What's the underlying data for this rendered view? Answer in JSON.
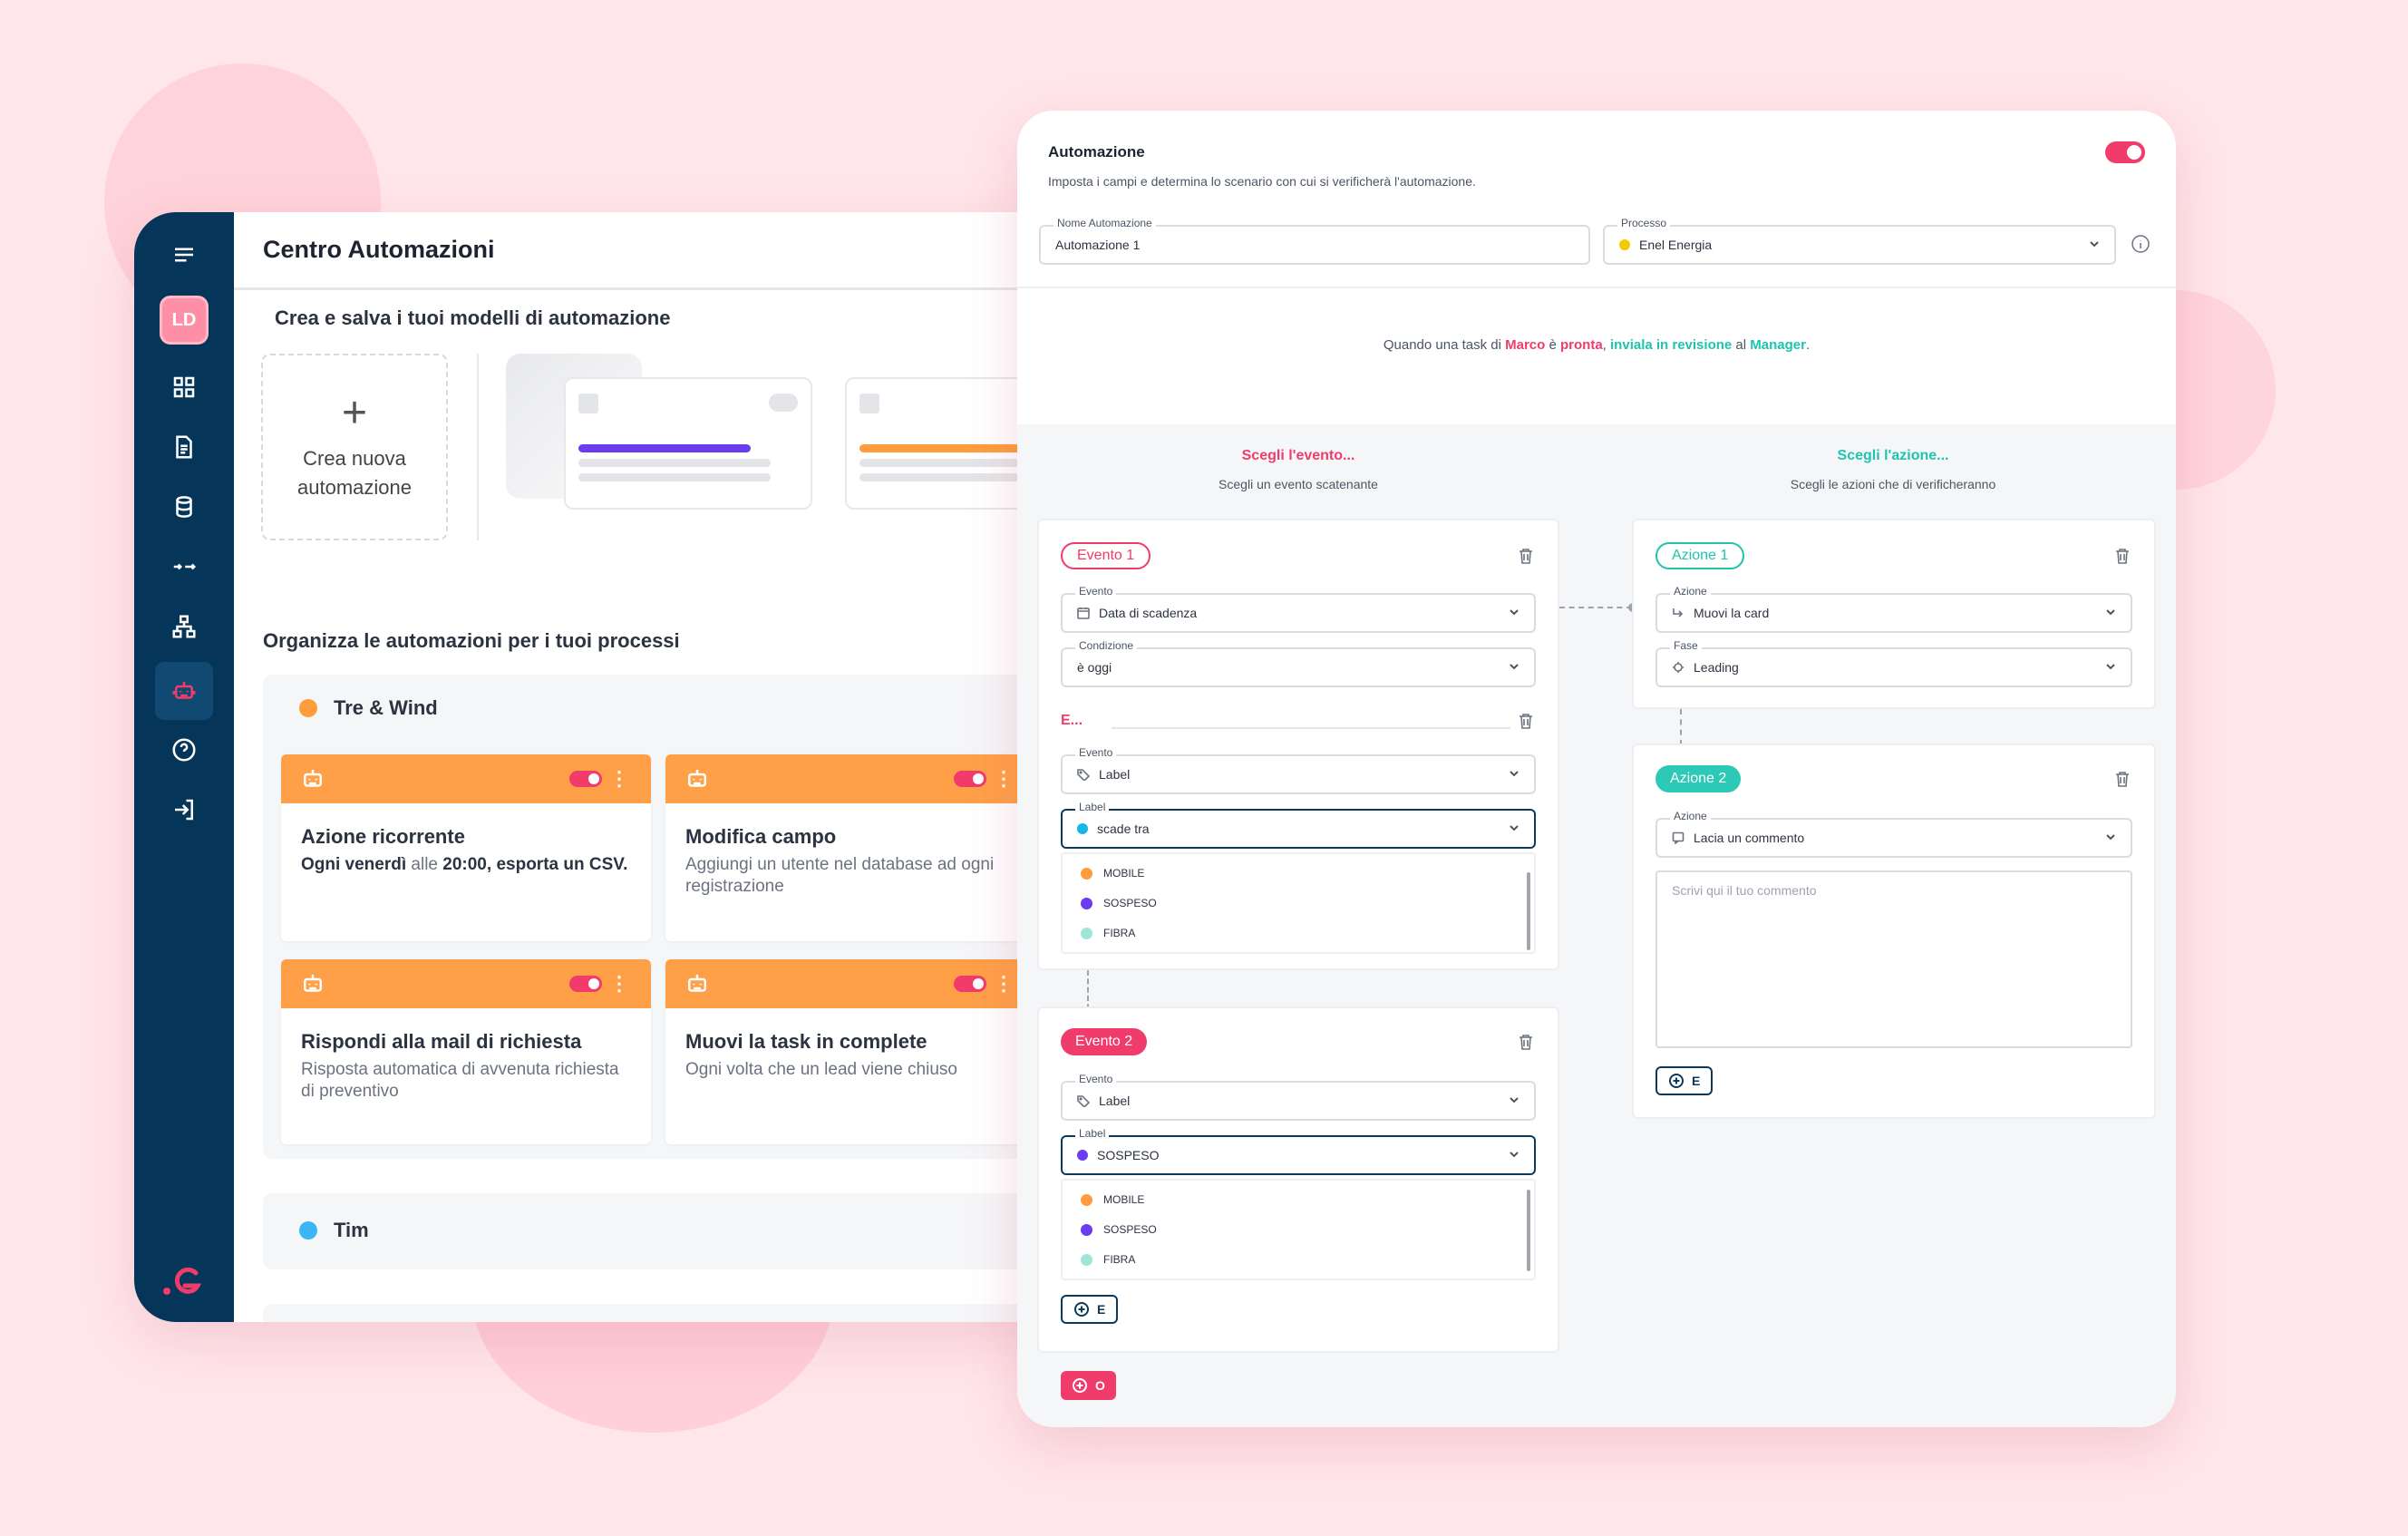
{
  "left_window": {
    "avatar": "LD",
    "title": "Centro Automazioni",
    "subtitle": "Crea e salva i tuoi modelli di automazione",
    "create_label_line1": "Crea nuova",
    "create_label_line2": "automazione",
    "organize_title": "Organizza le automazioni per i tuoi processi",
    "groups": [
      {
        "name": "Tre & Wind",
        "color": "#ff9d3d",
        "cards": [
          {
            "title": "Azione ricorrente",
            "desc_pre": "Ogni venerdì",
            "desc_mid": " alle ",
            "desc_time": "20:00",
            "desc_post": ", esporta un CSV."
          },
          {
            "title": "Modifica campo",
            "desc": "Aggiungi un utente nel database ad ogni registrazione"
          },
          {
            "title": "Rispondi alla mail di richiesta",
            "desc": "Risposta automatica di avvenuta richiesta di preventivo"
          },
          {
            "title": "Muovi la task in complete",
            "desc": "Ogni volta che un lead viene chiuso"
          }
        ]
      },
      {
        "name": "Tim",
        "color": "#3bb5f5"
      }
    ],
    "template_colors": [
      "#6c3cf0",
      "#ff9d3d"
    ]
  },
  "right_window": {
    "title": "Automazione",
    "description": "Imposta i campi e determina lo scenario con cui si verificherà l'automazione.",
    "name_label": "Nome Automazione",
    "name_value": "Automazione 1",
    "process_label": "Processo",
    "process_value": "Enel Energia",
    "process_color": "#f5c800",
    "summary": {
      "p1": "Quando una task di ",
      "marco": "Marco",
      "p2": " è ",
      "pronta": "pronta",
      "p3": ", ",
      "invia": "inviala in revisione",
      "p4": " al ",
      "manager": "Manager",
      "p5": "."
    },
    "events_col": {
      "title": "Scegli l'evento...",
      "subtitle": "Scegli un evento scatenante"
    },
    "actions_col": {
      "title": "Scegli l'azione...",
      "subtitle": "Scegli le azioni che di verificheranno"
    },
    "event1": {
      "tag": "Evento 1",
      "evento_label": "Evento",
      "evento_value": "Data di scadenza",
      "cond_label": "Condizione",
      "cond_value": "è oggi",
      "and_label": "E...",
      "evento2_label": "Evento",
      "evento2_value": "Label",
      "label_label": "Label",
      "label_value": "scade tra",
      "label_color": "#14b8e6",
      "options": [
        {
          "name": "MOBILE",
          "color": "#ff9d3d"
        },
        {
          "name": "SOSPESO",
          "color": "#6c3cf0"
        },
        {
          "name": "FIBRA",
          "color": "#9ee6d8"
        }
      ]
    },
    "event2": {
      "tag": "Evento 2",
      "evento_label": "Evento",
      "evento_value": "Label",
      "label_label": "Label",
      "label_value": "SOSPESO",
      "label_color": "#6c3cf0",
      "options": [
        {
          "name": "MOBILE",
          "color": "#ff9d3d"
        },
        {
          "name": "SOSPESO",
          "color": "#6c3cf0"
        },
        {
          "name": "FIBRA",
          "color": "#9ee6d8"
        }
      ],
      "add_label": "E"
    },
    "or_button": "O",
    "action1": {
      "tag": "Azione 1",
      "azione_label": "Azione",
      "azione_value": "Muovi la card",
      "fase_label": "Fase",
      "fase_value": "Leading"
    },
    "action2": {
      "tag": "Azione 2",
      "azione_label": "Azione",
      "azione_value": "Lacia un commento",
      "comment_placeholder": "Scrivi qui il tuo commento",
      "add_label": "E"
    }
  }
}
